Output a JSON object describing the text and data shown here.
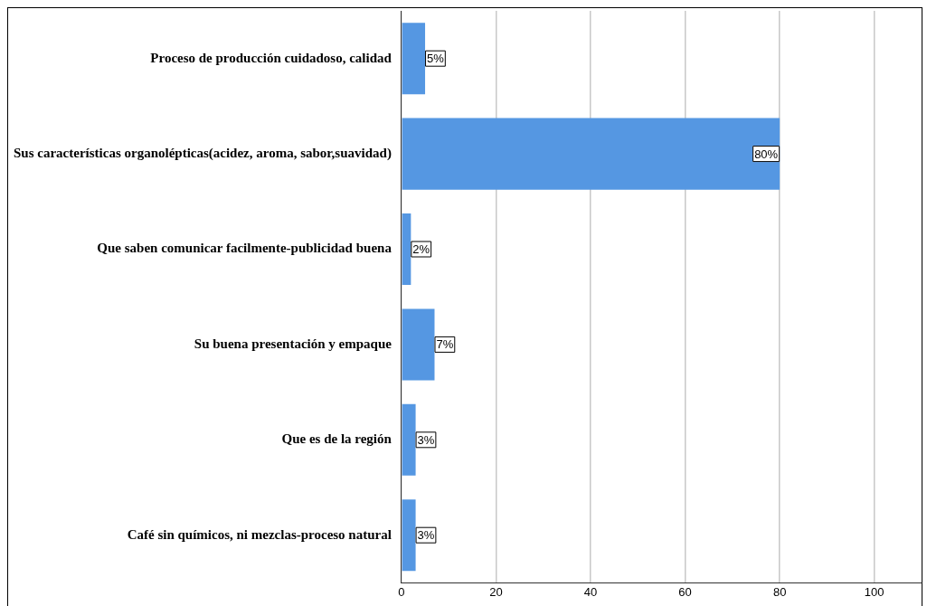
{
  "chart_data": {
    "type": "bar",
    "orientation": "horizontal",
    "categories": [
      "Proceso de producción cuidadoso, calidad",
      "Sus características organolépticas(acidez, aroma, sabor,suavidad)",
      "Que saben comunicar facilmente-publicidad buena",
      "Su buena presentación y empaque",
      "Que es de la región",
      "Café sin químicos, ni mezclas-proceso natural"
    ],
    "values": [
      5,
      80,
      2,
      7,
      3,
      3
    ],
    "value_labels": [
      "5%",
      "80%",
      "2%",
      "7%",
      "3%",
      "3%"
    ],
    "color": "#5597e2",
    "xlim": [
      0,
      110
    ],
    "xticks": [
      0,
      20,
      40,
      60,
      80,
      100
    ],
    "grid": "x",
    "legend": false
  }
}
